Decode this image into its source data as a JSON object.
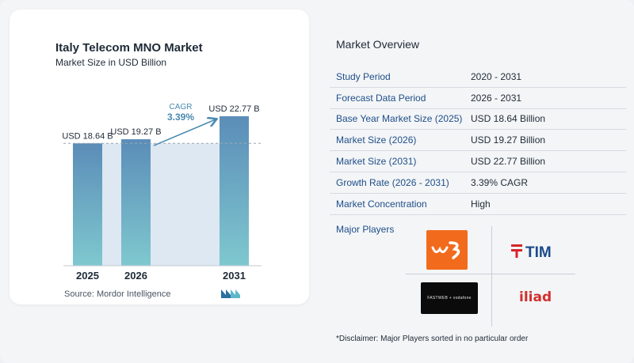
{
  "chart_data": {
    "type": "bar",
    "title": "Italy Telecom MNO Market",
    "subtitle": "Market Size in USD Billion",
    "categories": [
      "2025",
      "2026",
      "2031"
    ],
    "values": [
      18.64,
      19.27,
      22.77
    ],
    "value_labels": [
      "USD 18.64 B",
      "USD 19.27 B",
      "USD 22.77 B"
    ],
    "cagr_label": "CAGR",
    "cagr_value": "3.39%",
    "bar_color_top": "#5b8db8",
    "bar_color_bottom": "#7fc8cf",
    "shade_color": "#dde8f2",
    "arrow_color": "#4a8ab0",
    "grid": false
  },
  "source": "Source:  Mordor Intelligence",
  "overview": {
    "title": "Market Overview",
    "rows": [
      {
        "label": "Study Period",
        "value": "2020 - 2031"
      },
      {
        "label": "Forecast Data Period",
        "value": "2026 - 2031"
      },
      {
        "label": "Base Year Market Size (2025)",
        "value": "USD 18.64 Billion"
      },
      {
        "label": "Market Size (2026)",
        "value": "USD 19.27 Billion"
      },
      {
        "label": "Market Size (2031)",
        "value": "USD 22.77 Billion"
      },
      {
        "label": "Growth Rate (2026 - 2031)",
        "value": "3.39% CAGR"
      },
      {
        "label": "Market Concentration",
        "value": "High"
      }
    ]
  },
  "players": {
    "label": "Major Players",
    "logos": [
      "w3-logo",
      "tim-logo",
      "fastweb-vodafone-logo",
      "iliad-logo"
    ],
    "tim_text": "TIM",
    "fastweb_text": "FASTWEB + vodafone",
    "iliad_text": "iliad"
  },
  "disclaimer": "*Disclaimer: Major Players sorted in no particular order"
}
